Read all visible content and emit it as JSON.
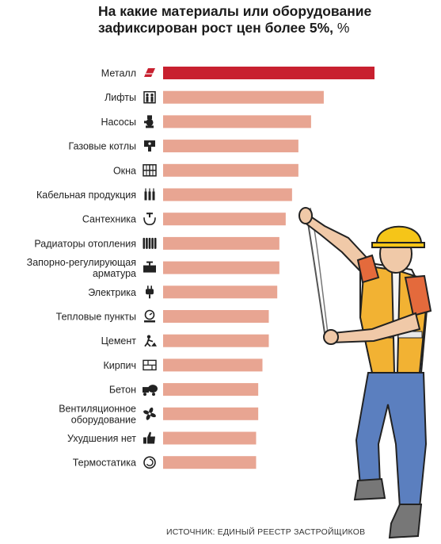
{
  "title": "На какие материалы или оборудование зафиксирован рост цен более 5%,",
  "title_unit": "%",
  "source": "ИСТОЧНИК: ЕДИНЫЙ РЕЕСТР ЗАСТРОЙЩИКОВ",
  "colors": {
    "highlight": "#c8202f",
    "bar": "#e8a592",
    "icon": "#222222"
  },
  "chart_data": {
    "type": "bar",
    "orientation": "horizontal",
    "categories": [
      "Металл",
      "Лифты",
      "Насосы",
      "Газовые котлы",
      "Окна",
      "Кабельная продукция",
      "Сантехника",
      "Радиаторы отопления",
      "Запорно-регулирующая арматура",
      "Электрика",
      "Тепловые пункты",
      "Цемент",
      "Кирпич",
      "Бетон",
      "Вентиляционное оборудование",
      "Ухудшения нет",
      "Термостатика"
    ],
    "label_lines": [
      [
        "Металл"
      ],
      [
        "Лифты"
      ],
      [
        "Насосы"
      ],
      [
        "Газовые котлы"
      ],
      [
        "Окна"
      ],
      [
        "Кабельная продукция"
      ],
      [
        "Сантехника"
      ],
      [
        "Радиаторы отопления"
      ],
      [
        "Запорно-регулирующая",
        "арматура"
      ],
      [
        "Электрика"
      ],
      [
        "Тепловые пункты"
      ],
      [
        "Цемент"
      ],
      [
        "Кирпич"
      ],
      [
        "Бетон"
      ],
      [
        "Вентиляционное",
        "оборудование"
      ],
      [
        "Ухудшения нет"
      ],
      [
        "Термостатика"
      ]
    ],
    "icons": [
      "metal-beam-icon",
      "elevator-icon",
      "pump-icon",
      "gas-boiler-icon",
      "window-icon",
      "cable-icon",
      "faucet-icon",
      "radiator-icon",
      "valve-icon",
      "plug-icon",
      "heat-point-icon",
      "cement-worker-icon",
      "brick-icon",
      "concrete-mixer-icon",
      "fan-icon",
      "thumbs-up-icon",
      "thermostat-icon"
    ],
    "values": [
      100,
      76,
      70,
      64,
      64,
      61,
      58,
      55,
      55,
      54,
      50,
      50,
      47,
      45,
      45,
      44,
      44
    ],
    "highlight_index": 0,
    "xlim": [
      0,
      100
    ]
  }
}
